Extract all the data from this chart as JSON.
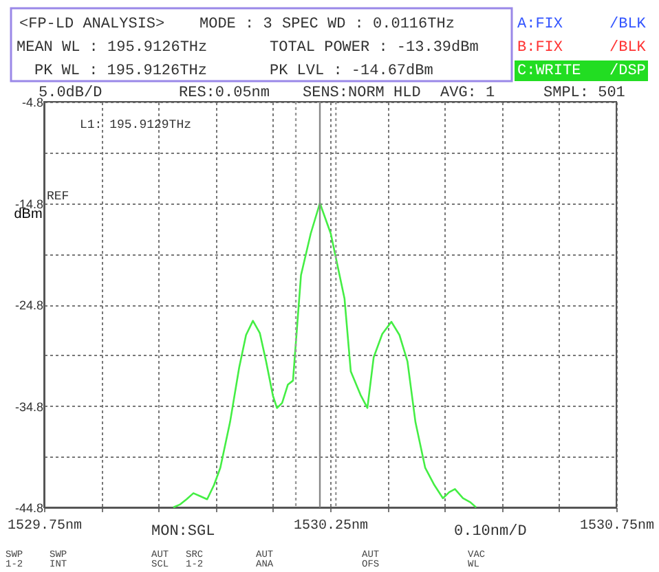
{
  "chart_data": {
    "type": "line",
    "ylabel": "dBm",
    "x": [
      1529.976,
      1529.988,
      1529.999,
      1530.011,
      1530.023,
      1530.035,
      1530.047,
      1530.058,
      1530.075,
      1530.091,
      1530.103,
      1530.115,
      1530.127,
      1530.138,
      1530.15,
      1530.157,
      1530.166,
      1530.176,
      1530.185,
      1530.199,
      1530.216,
      1530.232,
      1530.251,
      1530.275,
      1530.286,
      1530.303,
      1530.315,
      1530.326,
      1530.341,
      1530.357,
      1530.371,
      1530.385,
      1530.399,
      1530.416,
      1530.432,
      1530.447,
      1530.458,
      1530.468,
      1530.482,
      1530.495,
      1530.505
    ],
    "series": [
      {
        "color": "#44ee44",
        "values": [
          -44.8,
          -44.5,
          -44.0,
          -43.4,
          -43.7,
          -44.0,
          -42.6,
          -40.9,
          -36.4,
          -31.0,
          -27.8,
          -26.4,
          -27.6,
          -30.4,
          -33.8,
          -35.0,
          -34.5,
          -32.7,
          -32.3,
          -21.9,
          -17.8,
          -14.8,
          -17.8,
          -24.2,
          -31.4,
          -33.7,
          -35.0,
          -30.0,
          -27.7,
          -26.5,
          -27.8,
          -30.4,
          -36.4,
          -40.9,
          -42.6,
          -43.9,
          -43.3,
          -43.0,
          -43.9,
          -44.3,
          -44.8
        ]
      }
    ],
    "xlim": [
      1529.75,
      1530.75
    ],
    "xticks": [
      {
        "value": 1529.75,
        "label": "1529.75nm"
      },
      {
        "value": 1529.85,
        "label": null
      },
      {
        "value": 1529.95,
        "label": null
      },
      {
        "value": 1530.05,
        "label": null
      },
      {
        "value": 1530.15,
        "label": null
      },
      {
        "value": 1530.25,
        "label": "1530.25nm"
      },
      {
        "value": 1530.35,
        "label": null
      },
      {
        "value": 1530.45,
        "label": null
      },
      {
        "value": 1530.55,
        "label": null
      },
      {
        "value": 1530.65,
        "label": null
      },
      {
        "value": 1530.75,
        "label": "1530.75nm"
      }
    ],
    "ylim": [
      -44.8,
      -4.8
    ],
    "yticks": [
      -44.8,
      {
        "value": -39.8,
        "label": null
      },
      -34.8,
      {
        "value": -29.8,
        "label": null
      },
      -24.8,
      {
        "value": -19.8,
        "label": null
      },
      -14.8,
      {
        "value": -9.8,
        "label": null
      },
      -4.8
    ],
    "grid": true,
    "ref_lines": [
      {
        "axis": "x",
        "value": 1530.232,
        "color": "#888888",
        "line_style": "solid"
      },
      {
        "axis": "x",
        "value": 1530.19,
        "color": "#999999",
        "line_style": "dotted"
      },
      {
        "axis": "x",
        "value": 1530.26,
        "color": "#999999",
        "line_style": "dotted"
      }
    ],
    "annotations": [
      "<FP-LD ANALYSIS>",
      "MODE :   3",
      "SPEC WD :   0.0116THz",
      "MEAN WL : 195.9126THz",
      "TOTAL POWER :  -13.39dBm",
      "PK WL : 195.9126THz",
      "PK LVL :  -14.67dBm",
      "A:FIX",
      "/BLK",
      "B:FIX",
      "/BLK",
      "C:WRITE",
      "/DSP",
      "5.0dB/D",
      "RES:0.05nm",
      "SENS:NORM HLD",
      "AVG:   1",
      "SMPL: 501",
      "L1: 195.9129THz",
      "REF",
      "MON:SGL",
      "0.10nm/D",
      "SWP 1-2",
      "SWP INT",
      "AUT SCL",
      "SRC 1-2",
      "AUT ANA",
      "AUT OFS",
      "VAC WL"
    ]
  }
}
